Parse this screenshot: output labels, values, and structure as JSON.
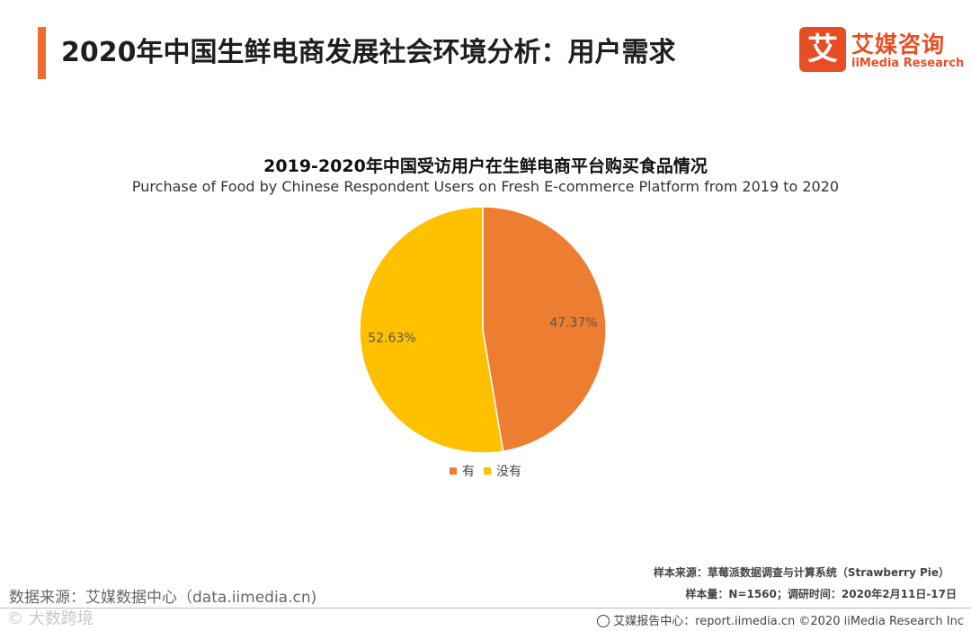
{
  "page": {
    "title": "2020年中国生鲜电商发展社会环境分析：用户需求"
  },
  "logo": {
    "mark": "艾",
    "name_cn": "艾媒咨询",
    "name_en": "iiMedia Research",
    "color": "#e84e24"
  },
  "chart_data": {
    "type": "pie",
    "title": "2019-2020年中国受访用户在生鲜电商平台购买食品情况",
    "subtitle": "Purchase of Food by Chinese Respondent Users on Fresh E-commerce Platform from 2019 to 2020",
    "slices": [
      {
        "label": "有",
        "value": 47.37,
        "display": "47.37%",
        "color": "#ed7d31"
      },
      {
        "label": "没有",
        "value": 52.63,
        "display": "52.63%",
        "color": "#ffc000"
      }
    ],
    "legend_position": "bottom"
  },
  "footer": {
    "data_source": "数据来源：艾媒数据中心（data.iimedia.cn)",
    "watermark": "© 大数跨境",
    "sample_source": "样本来源：草莓派数据调查与计算系统（Strawberry  Pie）",
    "sample_size": "样本量：N=1560；调研时间：2020年2月11日-17日",
    "report_center": "艾媒报告中心：report.iimedia.cn  ©2020  iiMedia Research  Inc"
  },
  "colors": {
    "accent": "#ec6b2d"
  }
}
